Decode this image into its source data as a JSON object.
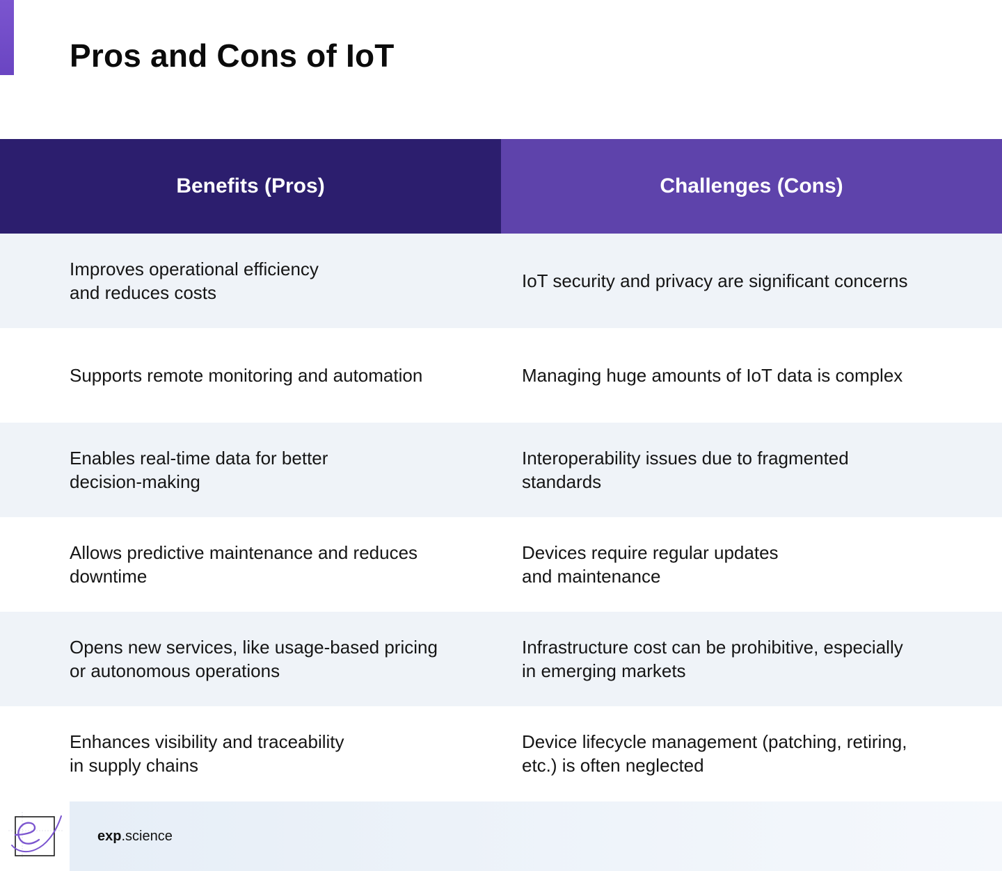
{
  "title": "Pros and Cons of IoT",
  "table": {
    "headers": {
      "pros": "Benefits (Pros)",
      "cons": "Challenges (Cons)"
    },
    "rows": [
      {
        "pro": "Improves operational efficiency\nand reduces costs",
        "con": "IoT security and privacy are significant concerns"
      },
      {
        "pro": "Supports remote monitoring and automation",
        "con": "Managing huge amounts of IoT data is complex"
      },
      {
        "pro": "Enables real-time data for better\ndecision-making",
        "con": "Interoperability issues due to fragmented\nstandards"
      },
      {
        "pro": "Allows predictive maintenance and reduces\ndowntime",
        "con": "Devices require regular updates\nand maintenance"
      },
      {
        "pro": "Opens new services, like usage-based pricing\nor autonomous operations",
        "con": "Infrastructure cost can be prohibitive, especially\nin emerging markets"
      },
      {
        "pro": "Enhances visibility and traceability\nin supply chains",
        "con": "Device lifecycle management (patching, retiring,\netc.) is often neglected"
      }
    ]
  },
  "footer": {
    "brand_bold": "exp",
    "brand_rest": ".science",
    "logo_icon": "exp-science-logo-icon"
  },
  "colors": {
    "accent": "#6a45c2",
    "header_pros": "#2c1e6e",
    "header_cons": "#5e43ab",
    "row_shade": "#eff3f8"
  }
}
